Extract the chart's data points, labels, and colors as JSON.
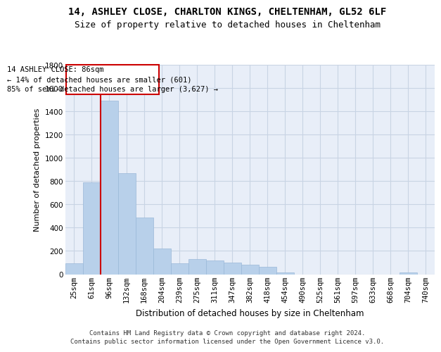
{
  "title1": "14, ASHLEY CLOSE, CHARLTON KINGS, CHELTENHAM, GL52 6LF",
  "title2": "Size of property relative to detached houses in Cheltenham",
  "xlabel": "Distribution of detached houses by size in Cheltenham",
  "ylabel": "Number of detached properties",
  "categories": [
    "25sqm",
    "61sqm",
    "96sqm",
    "132sqm",
    "168sqm",
    "204sqm",
    "239sqm",
    "275sqm",
    "311sqm",
    "347sqm",
    "382sqm",
    "418sqm",
    "454sqm",
    "490sqm",
    "525sqm",
    "561sqm",
    "597sqm",
    "633sqm",
    "668sqm",
    "704sqm",
    "740sqm"
  ],
  "values": [
    95,
    790,
    1490,
    870,
    490,
    220,
    95,
    130,
    115,
    100,
    80,
    65,
    18,
    0,
    0,
    0,
    0,
    0,
    0,
    18,
    0
  ],
  "bar_color": "#b8d0ea",
  "bar_edgecolor": "#9ab8d8",
  "vline_color": "#cc0000",
  "annotation_text": "14 ASHLEY CLOSE: 86sqm\n← 14% of detached houses are smaller (601)\n85% of semi-detached houses are larger (3,627) →",
  "annotation_box_color": "#cc0000",
  "ylim": [
    0,
    1800
  ],
  "yticks": [
    0,
    200,
    400,
    600,
    800,
    1000,
    1200,
    1400,
    1600,
    1800
  ],
  "grid_color": "#c8d4e4",
  "bg_color": "#e8eef8",
  "footer1": "Contains HM Land Registry data © Crown copyright and database right 2024.",
  "footer2": "Contains public sector information licensed under the Open Government Licence v3.0.",
  "title1_fontsize": 10,
  "title2_fontsize": 9,
  "xlabel_fontsize": 8.5,
  "ylabel_fontsize": 8,
  "tick_fontsize": 7.5,
  "annotation_fontsize": 7.5,
  "footer_fontsize": 6.5
}
